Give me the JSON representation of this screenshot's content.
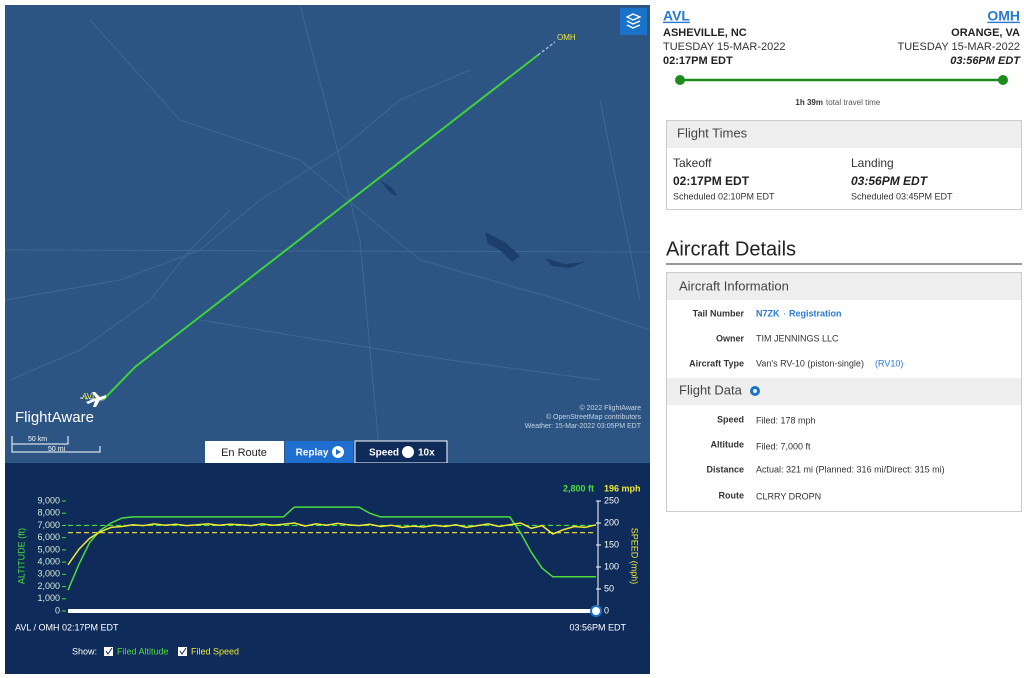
{
  "map": {
    "origin_label": "AVL",
    "dest_label": "OMH",
    "brand": "FlightAware",
    "attribution": [
      "© 2022 FlightAware",
      "© OpenStreetMap contributors",
      "Weather: 15-Mar-2022 03:05PM EDT"
    ],
    "scale": [
      "50 km",
      "50 mi"
    ]
  },
  "tabs": {
    "en_route": "En Route",
    "replay": "Replay",
    "speed": "Speed",
    "speed_value": "10x"
  },
  "flight_chart": {
    "type": "line",
    "y_label": "ALTITUDE (ft)",
    "y2_label": "SPEED (mph)",
    "current_altitude": "2,800 ft",
    "current_speed": "196 mph",
    "start_label": "AVL / OMH 02:17PM EDT",
    "end_label": "03:56PM EDT",
    "show_label": "Show:",
    "filed_altitude_label": "Filed Altitude",
    "filed_speed_label": "Filed Speed",
    "filed_altitude": 7000,
    "filed_speed": 178,
    "xlim": [
      0,
      98
    ],
    "x": [
      0,
      2,
      4,
      6,
      8,
      10,
      12,
      14,
      16,
      18,
      20,
      22,
      24,
      26,
      28,
      30,
      32,
      34,
      36,
      38,
      40,
      42,
      44,
      46,
      48,
      50,
      52,
      54,
      56,
      58,
      60,
      62,
      64,
      66,
      68,
      70,
      72,
      74,
      76,
      78,
      80,
      82,
      84,
      86,
      88,
      90,
      92,
      94,
      96,
      98
    ],
    "ylim": [
      0,
      9000
    ],
    "yticks": [
      0,
      {
        "value": 1000,
        "label": "1,000"
      },
      {
        "value": 2000,
        "label": "2,000"
      },
      {
        "value": 3000,
        "label": "3,000"
      },
      {
        "value": 4000,
        "label": "4,000"
      },
      {
        "value": 5000,
        "label": "5,000"
      },
      {
        "value": 6000,
        "label": "6,000"
      },
      {
        "value": 7000,
        "label": "7,000"
      },
      {
        "value": 8000,
        "label": "8,000"
      },
      {
        "value": 9000,
        "label": "9,000"
      }
    ],
    "y2lim": [
      0,
      250
    ],
    "y2ticks": [
      0,
      50,
      100,
      150,
      200,
      250
    ],
    "series": [
      {
        "name": "Altitude",
        "color": "#4cdd3c",
        "values": [
          1700,
          3800,
          5600,
          6600,
          7200,
          7600,
          7700,
          7700,
          7700,
          7700,
          7700,
          7700,
          7700,
          7700,
          7700,
          7700,
          7700,
          7700,
          7700,
          7700,
          7700,
          8500,
          8500,
          8500,
          8500,
          8500,
          8500,
          8500,
          8000,
          7700,
          7700,
          7700,
          7700,
          7700,
          7700,
          7700,
          7700,
          7700,
          7700,
          7700,
          7700,
          7700,
          6400,
          4800,
          3500,
          2800,
          2800,
          2800,
          2800,
          2800
        ]
      },
      {
        "name": "Speed",
        "color": "#eee83a",
        "axis": "y2",
        "values": [
          105,
          140,
          165,
          180,
          190,
          192,
          196,
          194,
          198,
          195,
          197,
          194,
          196,
          198,
          195,
          197,
          196,
          194,
          198,
          195,
          197,
          200,
          193,
          198,
          195,
          199,
          196,
          194,
          197,
          192,
          195,
          190,
          193,
          191,
          195,
          192,
          196,
          190,
          194,
          198,
          192,
          196,
          200,
          188,
          194,
          175,
          185,
          192,
          190,
          196
        ]
      }
    ]
  },
  "flight_header": {
    "origin_code": "AVL",
    "origin_city": "ASHEVILLE, NC",
    "origin_date": "TUESDAY 15-MAR-2022",
    "origin_time": "02:17PM EDT",
    "dest_code": "OMH",
    "dest_city": "ORANGE, VA",
    "dest_date": "TUESDAY 15-MAR-2022",
    "dest_time": "03:56PM EDT",
    "duration": "1h 39m",
    "duration_text": "total travel time"
  },
  "flight_times": {
    "title": "Flight Times",
    "takeoff_label": "Takeoff",
    "takeoff_time": "02:17PM EDT",
    "takeoff_scheduled": "Scheduled 02:10PM EDT",
    "landing_label": "Landing",
    "landing_time": "03:56PM EDT",
    "landing_scheduled": "Scheduled 03:45PM EDT"
  },
  "aircraft_details": {
    "title": "Aircraft Details",
    "info_title": "Aircraft Information",
    "tail_label": "Tail Number",
    "tail_number": "N7ZK",
    "separator": "·",
    "registration": "Registration",
    "owner_label": "Owner",
    "owner": "TIM JENNINGS LLC",
    "type_label": "Aircraft Type",
    "aircraft_type": "Van's RV-10 (piston-single)",
    "type_code": "(RV10)"
  },
  "flight_data": {
    "title": "Flight Data",
    "speed_label": "Speed",
    "speed": "Filed: 178 mph",
    "altitude_label": "Altitude",
    "altitude": "Filed: 7,000 ft",
    "distance_label": "Distance",
    "distance": "Actual: 321 mi (Planned: 316 mi/Direct: 315 mi)",
    "route_label": "Route",
    "route": "CLRRY DROPN"
  }
}
